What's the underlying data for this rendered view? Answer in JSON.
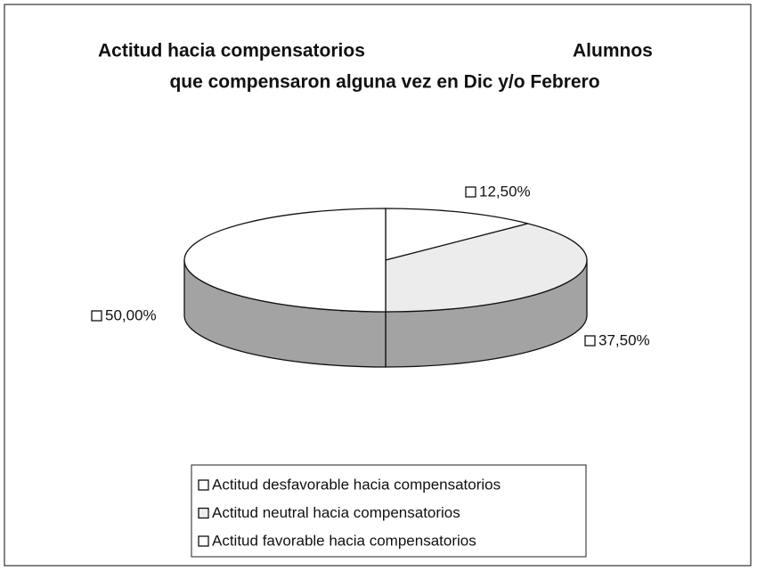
{
  "chart_data": {
    "type": "pie3d",
    "title": [
      "Actitud hacia compensatorios",
      "Alumnos",
      "que compensaron alguna vez en Dic y/o Febrero"
    ],
    "categories": [
      "Actitud desfavorable hacia compensatorios",
      "Actitud neutral hacia compensatorios",
      "Actitud favorable hacia compensatorios"
    ],
    "values": [
      12.5,
      37.5,
      50
    ],
    "value_labels": [
      "12,50%",
      "37,50%",
      "50,00%"
    ],
    "colors": [
      "#ffffff",
      "#ececec",
      "#ffffff"
    ],
    "side_color": "#a3a3a3",
    "legend": "bottom"
  }
}
